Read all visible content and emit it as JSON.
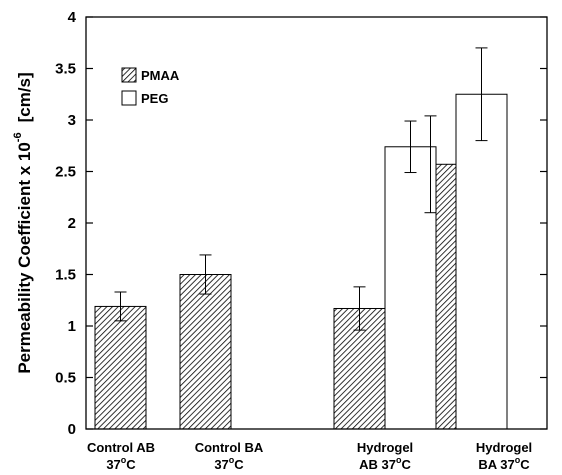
{
  "chart_data": {
    "type": "bar",
    "ylabel": "Permeability Coefficient x 10",
    "ylabel_exp": "-6",
    "ylabel_unit": "[cm/s]",
    "ylim": [
      0,
      4
    ],
    "yticks": [
      "0",
      "0.5",
      "1",
      "1.5",
      "2",
      "2.5",
      "3",
      "3.5",
      "4"
    ],
    "grid": false,
    "legend_position": "top-left",
    "categories": [
      {
        "line1": "Control AB",
        "line2": "37",
        "deg": "o",
        "unit": "C"
      },
      {
        "line1": "Control BA",
        "line2": "37",
        "deg": "o",
        "unit": "C"
      },
      {
        "line1": "Hydrogel",
        "line2": "AB 37",
        "deg": "o",
        "unit": "C"
      },
      {
        "line1": "Hydrogel",
        "line2": "BA 37",
        "deg": "o",
        "unit": "C"
      }
    ],
    "series": [
      {
        "name": "PMAA",
        "fill": "hatched",
        "values": [
          1.19,
          1.5,
          1.17,
          2.57
        ],
        "errors": [
          0.14,
          0.19,
          0.21,
          0.47
        ]
      },
      {
        "name": "PEG",
        "fill": "white",
        "values": [
          null,
          null,
          2.74,
          3.25
        ],
        "errors": [
          null,
          null,
          0.25,
          0.45
        ]
      }
    ]
  }
}
